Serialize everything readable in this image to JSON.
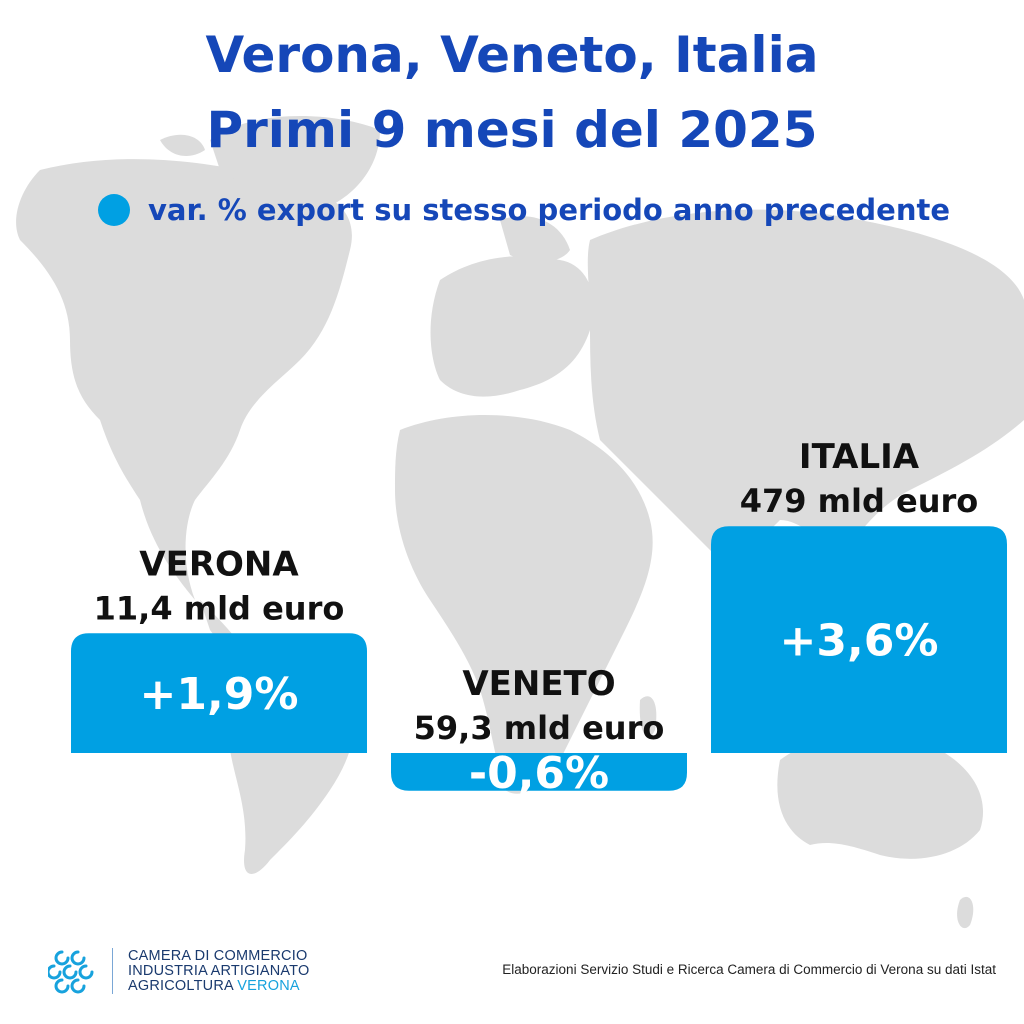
{
  "title_line1": "Verona, Veneto, Italia",
  "title_line2": "Primi 9 mesi del 2025",
  "legend": {
    "text": "var. % export su stesso periodo anno precedente",
    "color": "#00a0e3"
  },
  "colors": {
    "bar": "#00a0e3",
    "title": "#1547b8",
    "map": "#dcdcdc",
    "label": "#111111",
    "value_text": "#ffffff"
  },
  "chart_data": {
    "type": "bar",
    "categories": [
      "VERONA",
      "VENETO",
      "ITALIA"
    ],
    "series": [
      {
        "values": [
          1.9,
          -0.6,
          3.6
        ]
      }
    ],
    "value_labels": [
      "+1,9%",
      "-0,6%",
      "+3,6%"
    ],
    "export_totals": [
      "11,4 mld euro",
      "59,3 mld euro",
      "479 mld euro"
    ],
    "ylim": [
      -0.6,
      3.6
    ]
  },
  "footer": {
    "logo_line1": "CAMERA DI COMMERCIO",
    "logo_line2": "INDUSTRIA ARTIGIANATO",
    "logo_line3_prefix": "AGRICOLTURA ",
    "logo_line3_accent": "VERONA",
    "logo_icon": "camera-di-commercio-logo-icon",
    "source": "Elaborazioni Servizio Studi e Ricerca Camera di Commercio di Verona su dati Istat"
  }
}
